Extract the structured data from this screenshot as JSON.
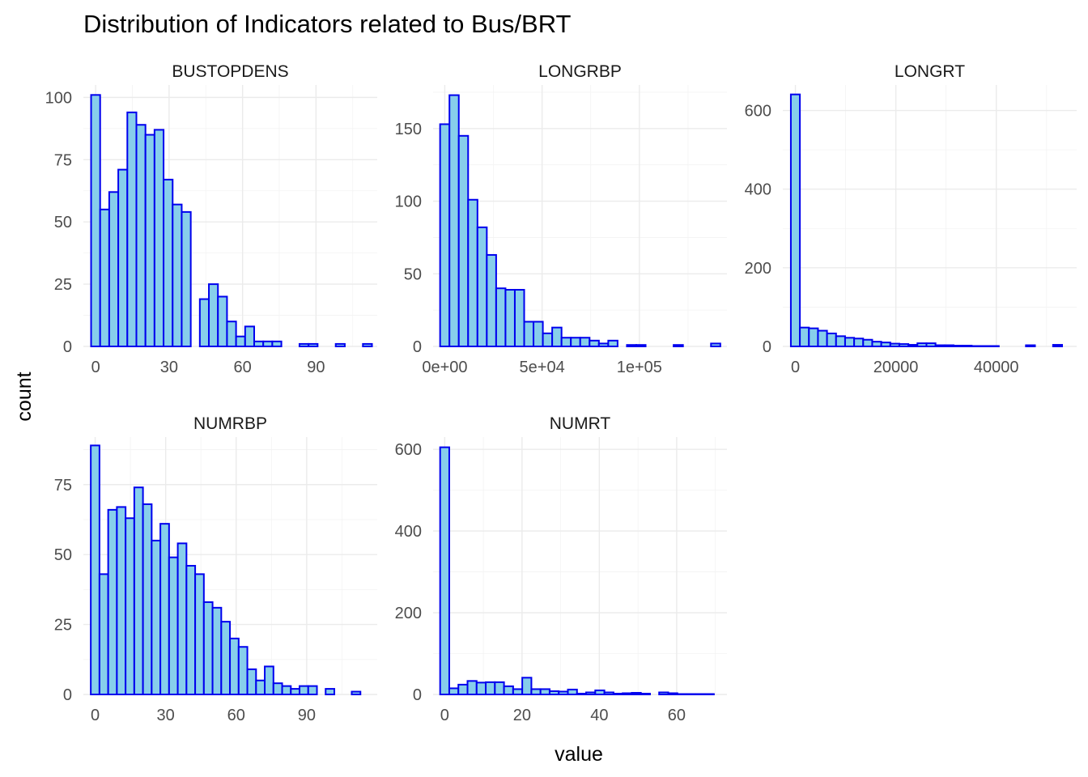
{
  "chart_data": {
    "type": "bar",
    "title": "Distribution of Indicators related to Bus/BRT",
    "xlabel": "value",
    "ylabel": "count",
    "colors": {
      "fill": "#87ceeb",
      "outline": "#0000ee",
      "grid": "#ebebeb"
    },
    "panels": [
      {
        "name": "BUSTOPDENS",
        "xlim": [
          -5,
          115
        ],
        "ylim": [
          0,
          105
        ],
        "x_ticks": [
          0,
          30,
          60,
          90
        ],
        "x_tick_labels": [
          "0",
          "30",
          "60",
          "90"
        ],
        "y_ticks": [
          0,
          25,
          50,
          75,
          100
        ],
        "y_tick_labels": [
          "0",
          "25",
          "50",
          "75",
          "100"
        ],
        "bin_start": -1.85,
        "bin_width": 3.7,
        "values": [
          101,
          55,
          62,
          71,
          94,
          89,
          85,
          87,
          67,
          57,
          54,
          0,
          19,
          25,
          20,
          10,
          4,
          8,
          2,
          2,
          2,
          0,
          0,
          1,
          1,
          0,
          0,
          1,
          0,
          0,
          1
        ]
      },
      {
        "name": "LONGRBP",
        "xlim": [
          -6000,
          145000
        ],
        "ylim": [
          0,
          180
        ],
        "x_ticks": [
          0,
          50000,
          100000
        ],
        "x_tick_labels": [
          "0e+00",
          "5e+04",
          "1e+05"
        ],
        "y_ticks": [
          0,
          50,
          100,
          150
        ],
        "y_tick_labels": [
          "0",
          "50",
          "100",
          "150"
        ],
        "bin_start": -2400,
        "bin_width": 4800,
        "values": [
          153,
          173,
          145,
          101,
          82,
          63,
          40,
          39,
          39,
          17,
          17,
          9,
          13,
          6,
          6,
          6,
          4,
          2,
          4,
          0,
          1,
          1,
          0,
          0,
          0,
          1,
          0,
          0,
          0,
          2
        ]
      },
      {
        "name": "LONGRT",
        "xlim": [
          -2500,
          56000
        ],
        "ylim": [
          0,
          665
        ],
        "x_ticks": [
          0,
          20000,
          40000
        ],
        "x_tick_labels": [
          "0",
          "20000",
          "40000"
        ],
        "y_ticks": [
          0,
          200,
          400,
          600
        ],
        "y_tick_labels": [
          "0",
          "200",
          "400",
          "600"
        ],
        "bin_start": -900,
        "bin_width": 1800,
        "values": [
          641,
          48,
          46,
          40,
          33,
          26,
          22,
          20,
          17,
          12,
          10,
          7,
          6,
          4,
          8,
          8,
          3,
          3,
          2,
          2,
          1,
          1,
          1,
          0,
          0,
          0,
          3,
          0,
          0,
          4
        ]
      },
      {
        "name": "NUMRBP",
        "xlim": [
          -5,
          120
        ],
        "ylim": [
          0,
          92
        ],
        "x_ticks": [
          0,
          30,
          60,
          90
        ],
        "x_tick_labels": [
          "0",
          "30",
          "60",
          "90"
        ],
        "y_ticks": [
          0,
          25,
          50,
          75
        ],
        "y_tick_labels": [
          "0",
          "25",
          "50",
          "75"
        ],
        "bin_start": -1.85,
        "bin_width": 3.7,
        "values": [
          89,
          43,
          66,
          67,
          63,
          74,
          68,
          55,
          61,
          49,
          54,
          46,
          43,
          33,
          31,
          26,
          20,
          17,
          9,
          5,
          10,
          4,
          3,
          2,
          3,
          3,
          0,
          2,
          0,
          0,
          1
        ]
      },
      {
        "name": "NUMRT",
        "xlim": [
          -3,
          73
        ],
        "ylim": [
          0,
          630
        ],
        "x_ticks": [
          0,
          20,
          40,
          60
        ],
        "x_tick_labels": [
          "0",
          "20",
          "40",
          "60"
        ],
        "y_ticks": [
          0,
          200,
          400,
          600
        ],
        "y_tick_labels": [
          "0",
          "200",
          "400",
          "600"
        ],
        "bin_start": -1.18,
        "bin_width": 2.36,
        "values": [
          605,
          15,
          24,
          33,
          29,
          30,
          30,
          20,
          13,
          41,
          13,
          13,
          8,
          7,
          12,
          2,
          5,
          10,
          5,
          2,
          3,
          4,
          2,
          0,
          5,
          3,
          1,
          1,
          1,
          1
        ]
      }
    ]
  }
}
